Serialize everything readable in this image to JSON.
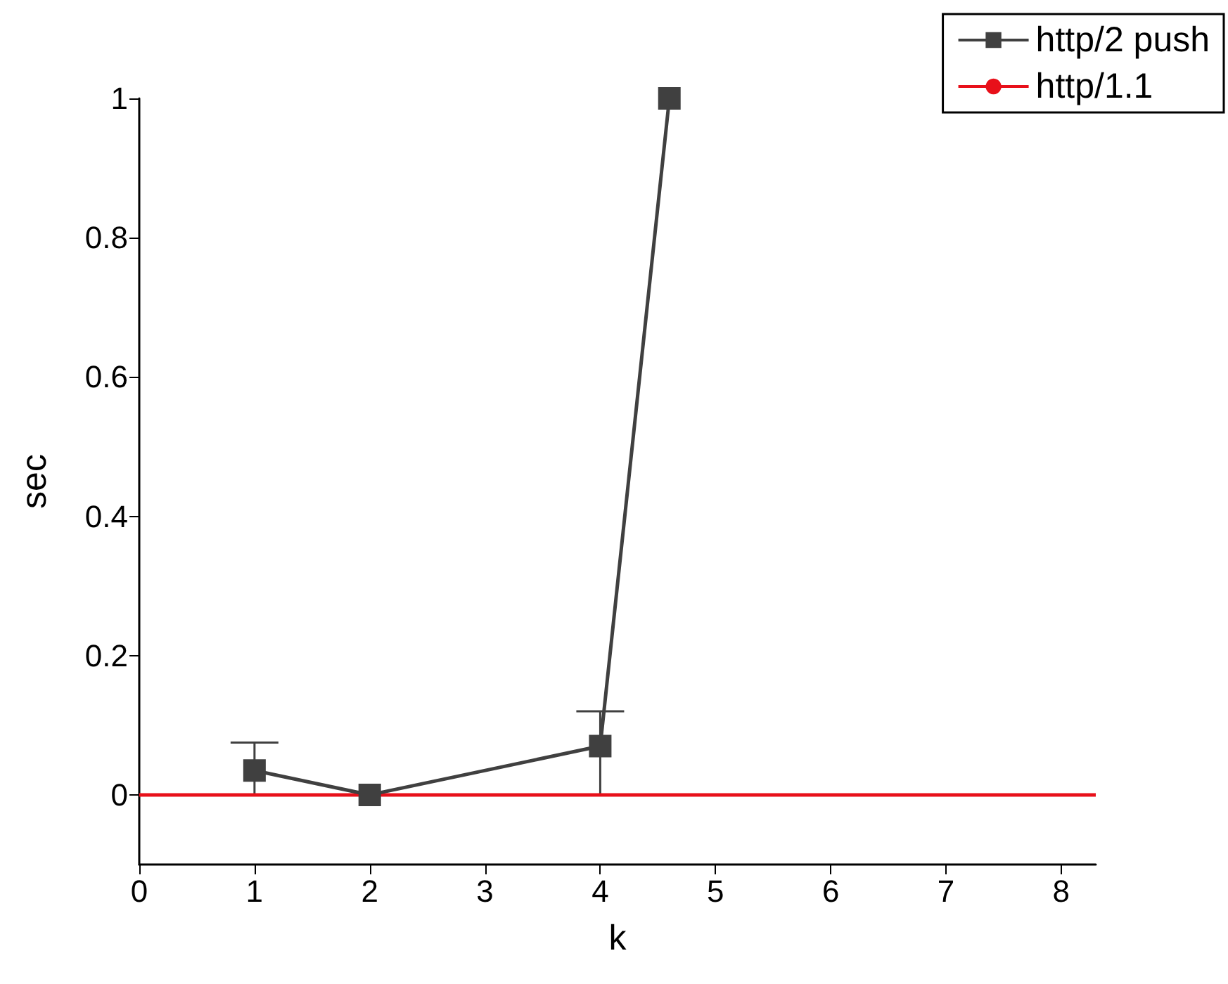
{
  "chart_data": {
    "type": "line",
    "xlabel": "k",
    "ylabel": "sec",
    "xlim": [
      0,
      8.3
    ],
    "xticks": [
      0,
      1,
      2,
      3,
      4,
      5,
      6,
      7,
      8
    ],
    "ylim": [
      -0.1,
      1
    ],
    "yticks": [
      0,
      0.2,
      0.4,
      0.6,
      0.8,
      1
    ],
    "series": [
      {
        "name": "http/2 push",
        "color": "#404040",
        "marker": "square",
        "x": [
          1,
          2,
          4,
          4.6
        ],
        "values": [
          0.035,
          0,
          0.07,
          1
        ],
        "errors": [
          [
            0,
            0.075
          ],
          null,
          [
            0,
            0.12
          ],
          null
        ]
      },
      {
        "name": "http/1.1",
        "color": "#e8101a",
        "marker": "none",
        "x": [
          0,
          8.3
        ],
        "values": [
          0,
          0
        ]
      }
    ],
    "grid": false,
    "legend": "top right"
  }
}
